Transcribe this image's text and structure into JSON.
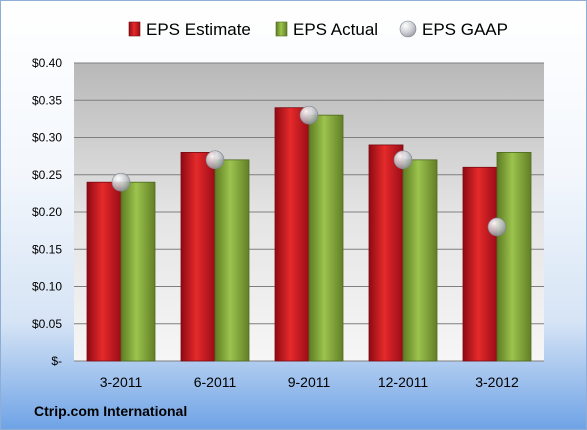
{
  "company": "Ctrip.com International",
  "chart_data": {
    "type": "bar",
    "categories": [
      "3-2011",
      "6-2011",
      "9-2011",
      "12-2011",
      "3-2012"
    ],
    "series": [
      {
        "name": "EPS Estimate",
        "type": "bar",
        "color": "#c8102e",
        "values": [
          0.24,
          0.28,
          0.34,
          0.29,
          0.26
        ]
      },
      {
        "name": "EPS Actual",
        "type": "bar",
        "color": "#8db342",
        "values": [
          0.24,
          0.27,
          0.33,
          0.27,
          0.28
        ]
      },
      {
        "name": "EPS GAAP",
        "type": "scatter",
        "color": "#c0c4cc",
        "values": [
          0.24,
          0.27,
          0.33,
          0.27,
          0.18
        ]
      }
    ],
    "yticks": [
      "$-",
      "$0.05",
      "$0.10",
      "$0.15",
      "$0.20",
      "$0.25",
      "$0.30",
      "$0.35",
      "$0.40"
    ],
    "ylim": [
      0,
      0.4
    ],
    "grid": true,
    "legend_position": "top"
  }
}
